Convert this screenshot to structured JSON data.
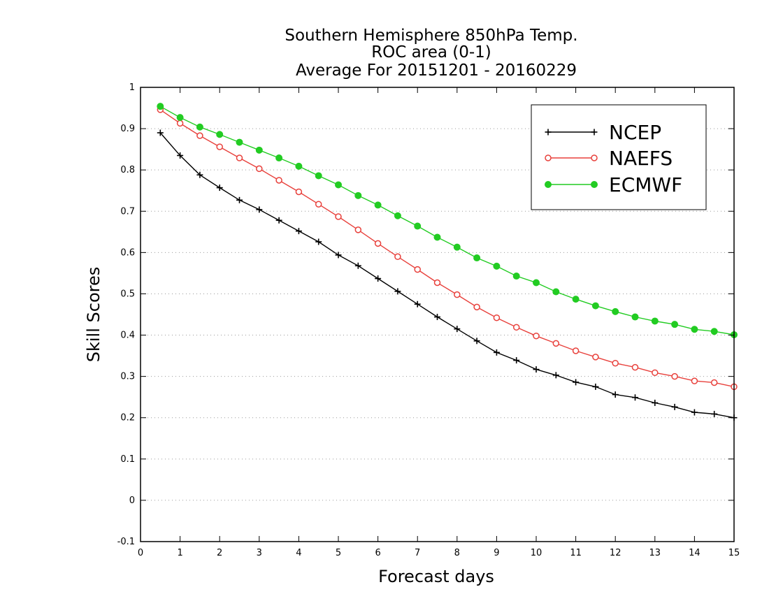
{
  "chart_data": {
    "type": "line",
    "title_lines": [
      "Southern Hemisphere 850hPa Temp.",
      "ROC area (0-1)",
      "Average For 20151201 - 20160229"
    ],
    "xlabel": "Forecast days",
    "ylabel": "Skill Scores",
    "xlim": [
      0,
      15
    ],
    "ylim": [
      -0.1,
      1
    ],
    "x_ticks": [
      "0",
      "1",
      "2",
      "3",
      "4",
      "5",
      "6",
      "7",
      "8",
      "9",
      "10",
      "11",
      "12",
      "13",
      "14",
      "15"
    ],
    "y_ticks": [
      "-0.1",
      "0",
      "0.1",
      "0.2",
      "0.3",
      "0.4",
      "0.5",
      "0.6",
      "0.7",
      "0.8",
      "0.9",
      "1"
    ],
    "grid": "horizontal-dotted",
    "legend_position": "top-right",
    "x": [
      0.5,
      1,
      1.5,
      2,
      2.5,
      3,
      3.5,
      4,
      4.5,
      5,
      5.5,
      6,
      6.5,
      7,
      7.5,
      8,
      8.5,
      9,
      9.5,
      10,
      10.5,
      11,
      11.5,
      12,
      12.5,
      13,
      13.5,
      14,
      14.5,
      15
    ],
    "series": [
      {
        "name": "NCEP",
        "color": "#000000",
        "marker": "plus",
        "values": [
          0.89,
          0.835,
          0.788,
          0.757,
          0.727,
          0.704,
          0.678,
          0.652,
          0.626,
          0.594,
          0.568,
          0.537,
          0.506,
          0.475,
          0.444,
          0.415,
          0.386,
          0.358,
          0.339,
          0.317,
          0.303,
          0.286,
          0.275,
          0.256,
          0.249,
          0.236,
          0.226,
          0.213,
          0.209,
          0.2
        ]
      },
      {
        "name": "NAEFS",
        "color": "#e8413c",
        "marker": "open-circle",
        "values": [
          0.946,
          0.913,
          0.883,
          0.856,
          0.829,
          0.803,
          0.775,
          0.747,
          0.717,
          0.687,
          0.655,
          0.622,
          0.59,
          0.559,
          0.527,
          0.498,
          0.468,
          0.442,
          0.419,
          0.398,
          0.38,
          0.362,
          0.347,
          0.332,
          0.322,
          0.309,
          0.3,
          0.289,
          0.285,
          0.275
        ]
      },
      {
        "name": "ECMWF",
        "color": "#22cc22",
        "marker": "filled-circle",
        "values": [
          0.954,
          0.927,
          0.904,
          0.886,
          0.867,
          0.848,
          0.829,
          0.809,
          0.786,
          0.764,
          0.738,
          0.715,
          0.689,
          0.664,
          0.637,
          0.613,
          0.587,
          0.567,
          0.543,
          0.527,
          0.505,
          0.487,
          0.471,
          0.457,
          0.444,
          0.434,
          0.426,
          0.414,
          0.409,
          0.401
        ]
      }
    ]
  }
}
